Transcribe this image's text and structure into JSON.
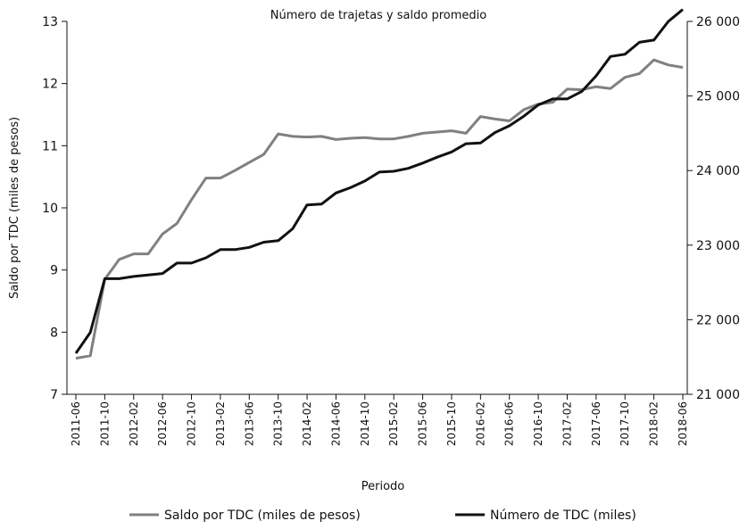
{
  "chart_data": {
    "type": "line",
    "title": "Número de trajetas y saldo promedio",
    "xlabel": "Periodo",
    "ylabel": "Saldo por TDC (miles de pesos)",
    "y2label": "",
    "ylim": [
      7,
      13
    ],
    "y2lim": [
      21000,
      26000
    ],
    "yticks": [
      "7",
      "8",
      "9",
      "10",
      "11",
      "12",
      "13"
    ],
    "y2ticks": [
      "21 000",
      "22 000",
      "23 000",
      "24 000",
      "25 000",
      "26 000"
    ],
    "grid": false,
    "legend_position": "bottom",
    "x": [
      "2011-06",
      "2011-08",
      "2011-10",
      "2011-12",
      "2012-02",
      "2012-04",
      "2012-06",
      "2012-08",
      "2012-10",
      "2012-12",
      "2013-02",
      "2013-04",
      "2013-06",
      "2013-08",
      "2013-10",
      "2013-12",
      "2014-02",
      "2014-04",
      "2014-06",
      "2014-08",
      "2014-10",
      "2014-12",
      "2015-02",
      "2015-04",
      "2015-06",
      "2015-08",
      "2015-10",
      "2015-12",
      "2016-02",
      "2016-04",
      "2016-06",
      "2016-08",
      "2016-10",
      "2016-12",
      "2017-02",
      "2017-04",
      "2017-06",
      "2017-08",
      "2017-10",
      "2017-12",
      "2018-02",
      "2018-04",
      "2018-06"
    ],
    "xticks": [
      "2011-06",
      "2011-10",
      "2012-02",
      "2012-06",
      "2012-10",
      "2013-02",
      "2013-06",
      "2013-10",
      "2014-02",
      "2014-06",
      "2014-10",
      "2015-02",
      "2015-06",
      "2015-10",
      "2016-02",
      "2016-06",
      "2016-10",
      "2017-02",
      "2017-06",
      "2017-10",
      "2018-02",
      "2018-06"
    ],
    "series": [
      {
        "name": "Saldo por TDC (miles de pesos)",
        "axis": "left",
        "color": "#808080",
        "values": [
          7.58,
          7.62,
          8.85,
          9.17,
          9.26,
          9.26,
          9.58,
          9.75,
          10.13,
          10.48,
          10.48,
          10.6,
          10.73,
          10.86,
          11.19,
          11.15,
          11.14,
          11.15,
          11.1,
          11.12,
          11.13,
          11.11,
          11.11,
          11.15,
          11.2,
          11.22,
          11.24,
          11.2,
          11.47,
          11.43,
          11.4,
          11.58,
          11.67,
          11.7,
          11.91,
          11.9,
          11.95,
          11.92,
          12.1,
          12.16,
          12.38,
          12.3,
          12.26
        ]
      },
      {
        "name": "Número de TDC (miles)",
        "axis": "right",
        "color": "#111111",
        "values": [
          21550,
          21830,
          22550,
          22550,
          22580,
          22600,
          22620,
          22760,
          22760,
          22830,
          22940,
          22940,
          22970,
          23040,
          23060,
          23220,
          23540,
          23550,
          23700,
          23770,
          23860,
          23980,
          23990,
          24030,
          24100,
          24180,
          24250,
          24360,
          24370,
          24510,
          24600,
          24730,
          24880,
          24960,
          24960,
          25060,
          25270,
          25530,
          25560,
          25720,
          25750,
          26000,
          26160
        ]
      }
    ]
  }
}
